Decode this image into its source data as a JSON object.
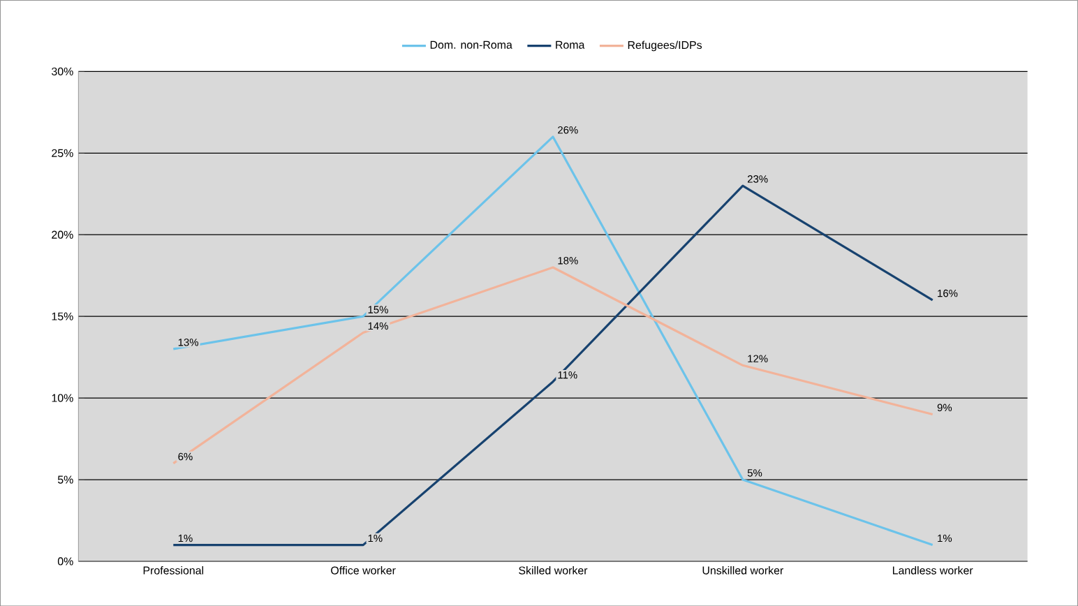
{
  "chart_data": {
    "type": "line",
    "categories": [
      "Professional",
      "Office worker",
      "Skilled worker",
      "Unskilled worker",
      "Landless worker"
    ],
    "series": [
      {
        "name": "Dom. non-Roma",
        "color": "#6cc3ea",
        "values": [
          13,
          15,
          26,
          5,
          1
        ],
        "value_labels": [
          "13%",
          "15%",
          "26%",
          "5%",
          "1%"
        ]
      },
      {
        "name": "Roma",
        "color": "#17426f",
        "values": [
          1,
          1,
          11,
          23,
          16
        ],
        "value_labels": [
          "1%",
          "1%",
          "11%",
          "23%",
          "16%"
        ]
      },
      {
        "name": "Refugees/IDPs",
        "color": "#f2b39a",
        "values": [
          6,
          14,
          18,
          12,
          9
        ],
        "value_labels": [
          "6%",
          "14%",
          "18%",
          "12%",
          "9%"
        ]
      }
    ],
    "ylim": [
      0,
      30
    ],
    "yticks": [
      {
        "value": 0,
        "label": "0%"
      },
      {
        "value": 5,
        "label": "5%"
      },
      {
        "value": 10,
        "label": "10%"
      },
      {
        "value": 15,
        "label": "15%"
      },
      {
        "value": 20,
        "label": "20%"
      },
      {
        "value": 25,
        "label": "25%"
      },
      {
        "value": 30,
        "label": "30%"
      }
    ],
    "grid": "y",
    "legend": "top",
    "marker": "none",
    "line_style": "solid"
  }
}
